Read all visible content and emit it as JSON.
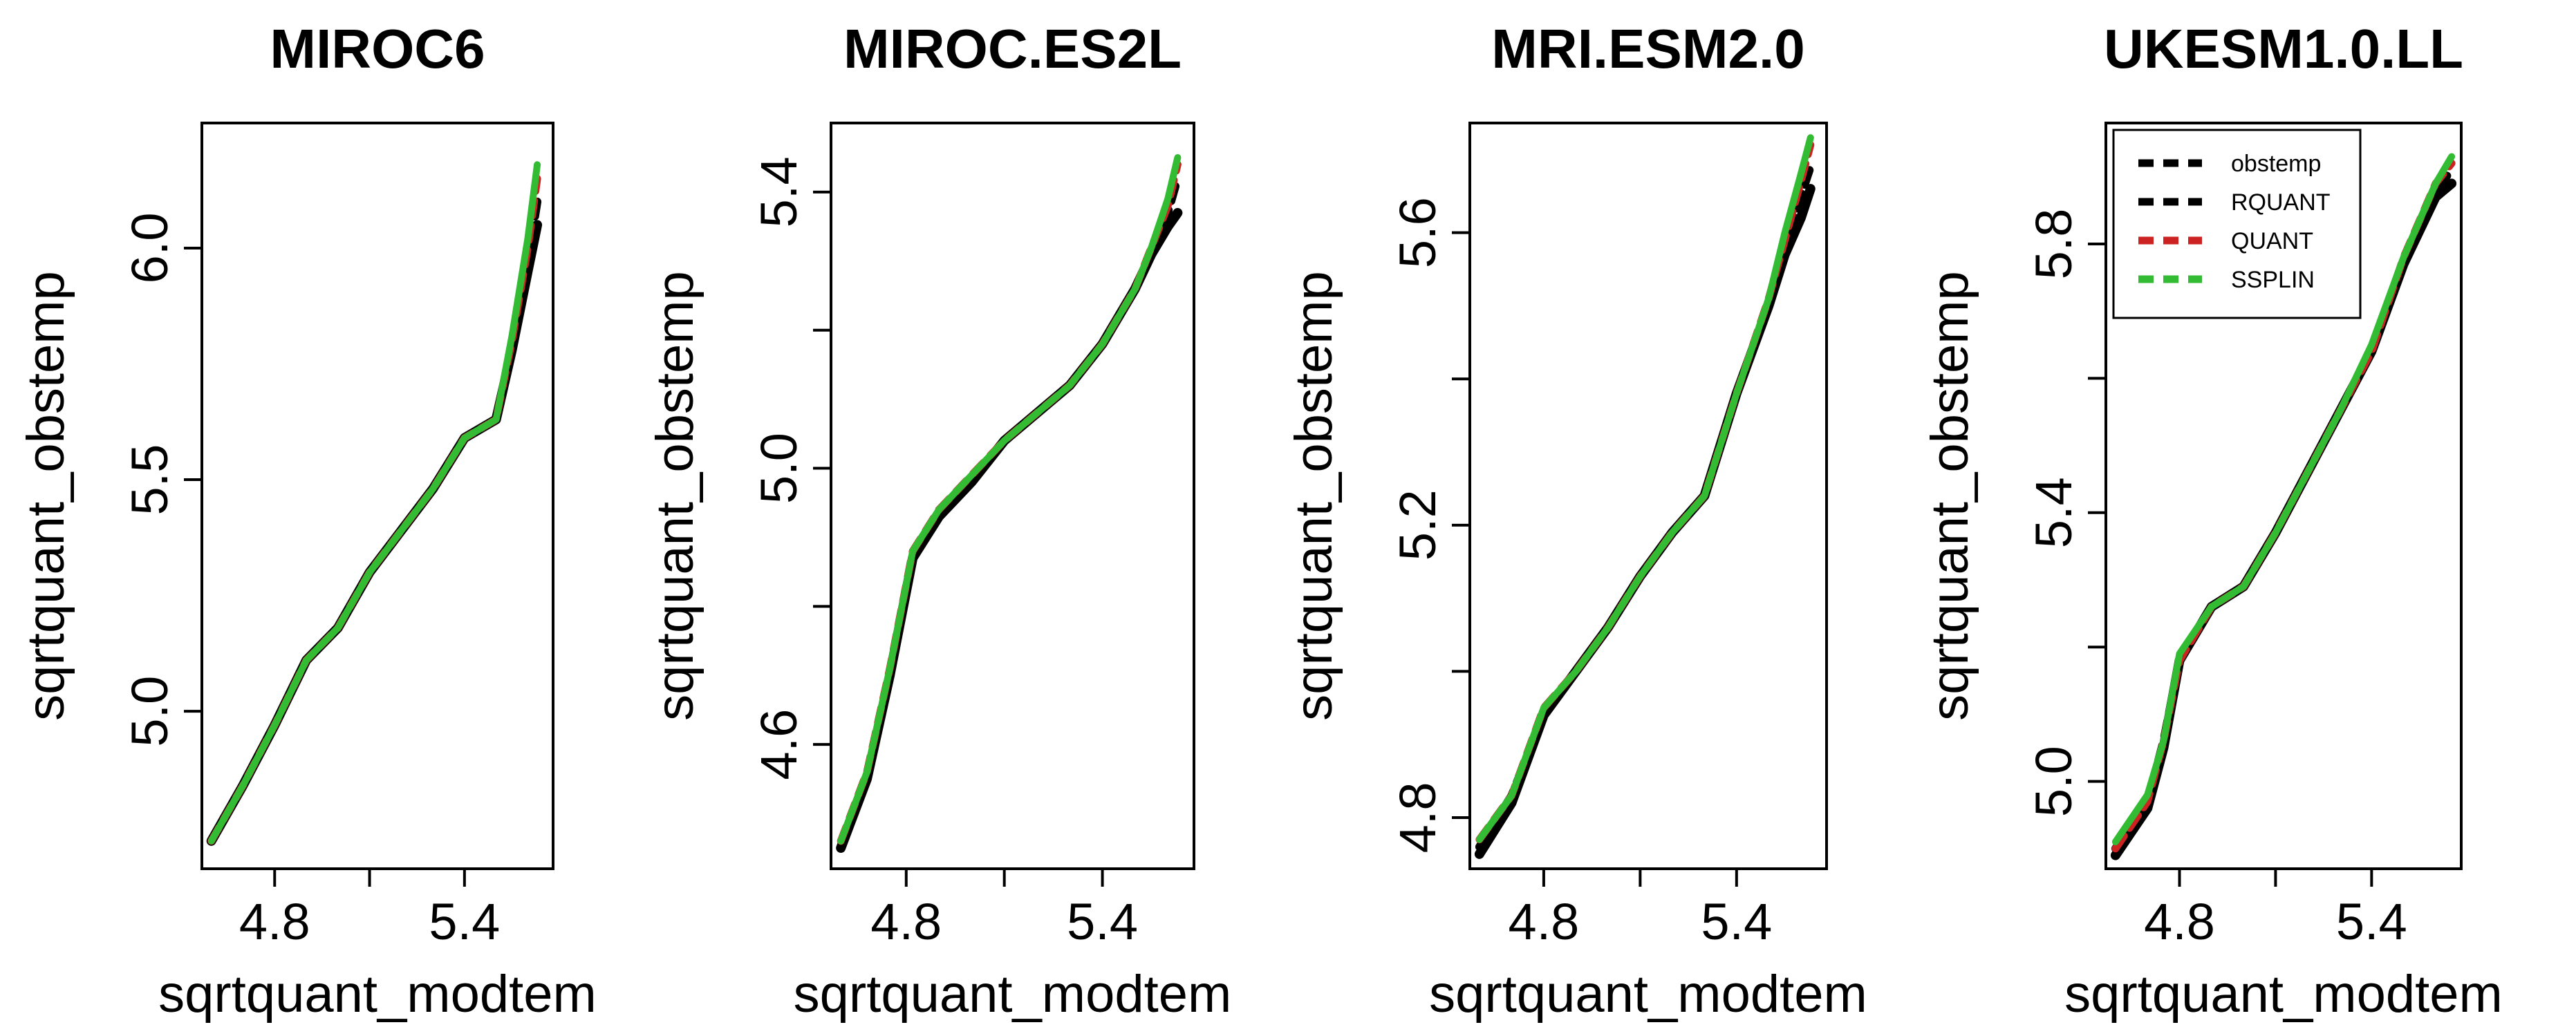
{
  "figure": {
    "background": "#ffffff",
    "line_colors": {
      "obstemp": "#000000",
      "RQUANT": "#000000",
      "QUANT": "#cc2222",
      "SSPLIN": "#33bb33"
    }
  },
  "chart_data": [
    {
      "type": "line",
      "title": "MIROC6",
      "xlabel": "sqrtquant_modtem",
      "ylabel": "sqrtquant_obstemp",
      "xlim": [
        4.57,
        5.68
      ],
      "ylim": [
        4.66,
        6.27
      ],
      "xticks": [
        4.8,
        5.1,
        5.4
      ],
      "xtick_labels": [
        "4.8",
        "",
        "5.4"
      ],
      "yticks": [
        5.0,
        5.5,
        6.0
      ],
      "ytick_labels": [
        "5.0",
        "5.5",
        "6.0"
      ],
      "grid": false,
      "legend": null,
      "x": [
        4.6,
        4.7,
        4.8,
        4.9,
        5.0,
        5.1,
        5.2,
        5.3,
        5.4,
        5.5,
        5.55,
        5.6,
        5.63
      ],
      "series": [
        {
          "name": "obstemp",
          "values": [
            4.72,
            4.84,
            4.97,
            5.11,
            5.18,
            5.3,
            5.39,
            5.48,
            5.59,
            5.63,
            5.78,
            5.95,
            6.05
          ]
        },
        {
          "name": "RQUANT",
          "values": [
            4.72,
            4.84,
            4.97,
            5.11,
            5.18,
            5.3,
            5.39,
            5.48,
            5.59,
            5.63,
            5.78,
            5.97,
            6.1
          ]
        },
        {
          "name": "QUANT",
          "values": [
            4.72,
            4.84,
            4.97,
            5.11,
            5.18,
            5.3,
            5.39,
            5.48,
            5.59,
            5.63,
            5.8,
            6.0,
            6.15
          ]
        },
        {
          "name": "SSPLIN",
          "values": [
            4.72,
            4.84,
            4.97,
            5.11,
            5.18,
            5.3,
            5.39,
            5.48,
            5.59,
            5.63,
            5.81,
            6.02,
            6.18
          ]
        }
      ]
    },
    {
      "type": "line",
      "title": "MIROC.ES2L",
      "xlabel": "sqrtquant_modtem",
      "ylabel": "sqrtquant_obstemp",
      "xlim": [
        4.57,
        5.68
      ],
      "ylim": [
        4.42,
        5.5
      ],
      "xticks": [
        4.8,
        5.1,
        5.4
      ],
      "xtick_labels": [
        "4.8",
        "",
        "5.4"
      ],
      "yticks": [
        4.6,
        4.8,
        5.0,
        5.2,
        5.4
      ],
      "ytick_labels": [
        "4.6",
        "",
        "5.0",
        "",
        "5.4"
      ],
      "grid": false,
      "legend": null,
      "x": [
        4.6,
        4.68,
        4.75,
        4.82,
        4.9,
        5.0,
        5.1,
        5.2,
        5.3,
        5.4,
        5.5,
        5.55,
        5.6,
        5.63
      ],
      "series": [
        {
          "name": "obstemp",
          "values": [
            4.45,
            4.55,
            4.7,
            4.87,
            4.93,
            4.98,
            5.04,
            5.08,
            5.12,
            5.18,
            5.26,
            5.31,
            5.35,
            5.37
          ]
        },
        {
          "name": "RQUANT",
          "values": [
            4.45,
            4.55,
            4.7,
            4.87,
            4.93,
            4.98,
            5.04,
            5.08,
            5.12,
            5.18,
            5.26,
            5.31,
            5.37,
            5.42
          ]
        },
        {
          "name": "QUANT",
          "values": [
            4.46,
            4.56,
            4.71,
            4.88,
            4.94,
            4.99,
            5.04,
            5.08,
            5.12,
            5.18,
            5.26,
            5.32,
            5.38,
            5.44
          ]
        },
        {
          "name": "SSPLIN",
          "values": [
            4.46,
            4.56,
            4.71,
            4.88,
            4.94,
            4.99,
            5.04,
            5.08,
            5.12,
            5.18,
            5.26,
            5.32,
            5.39,
            5.45
          ]
        }
      ]
    },
    {
      "type": "line",
      "title": "MRI.ESM2.0",
      "xlabel": "sqrtquant_modtem",
      "ylabel": "sqrtquant_obstemp",
      "xlim": [
        4.57,
        5.68
      ],
      "ylim": [
        4.73,
        5.75
      ],
      "xticks": [
        4.8,
        5.1,
        5.4
      ],
      "xtick_labels": [
        "4.8",
        "",
        "5.4"
      ],
      "yticks": [
        4.8,
        5.0,
        5.2,
        5.4,
        5.6
      ],
      "ytick_labels": [
        "4.8",
        "",
        "5.2",
        "",
        "5.6"
      ],
      "grid": false,
      "legend": null,
      "x": [
        4.6,
        4.7,
        4.8,
        4.9,
        5.0,
        5.1,
        5.2,
        5.3,
        5.4,
        5.5,
        5.55,
        5.6,
        5.63
      ],
      "series": [
        {
          "name": "obstemp",
          "values": [
            4.75,
            4.82,
            4.94,
            5.0,
            5.06,
            5.13,
            5.19,
            5.24,
            5.38,
            5.5,
            5.57,
            5.62,
            5.66
          ]
        },
        {
          "name": "RQUANT",
          "values": [
            4.76,
            4.83,
            4.94,
            5.0,
            5.06,
            5.13,
            5.19,
            5.24,
            5.38,
            5.5,
            5.58,
            5.65,
            5.69
          ]
        },
        {
          "name": "QUANT",
          "values": [
            4.77,
            4.83,
            4.95,
            5.0,
            5.06,
            5.13,
            5.19,
            5.24,
            5.38,
            5.51,
            5.59,
            5.67,
            5.72
          ]
        },
        {
          "name": "SSPLIN",
          "values": [
            4.77,
            4.83,
            4.95,
            5.0,
            5.06,
            5.13,
            5.19,
            5.24,
            5.38,
            5.51,
            5.6,
            5.68,
            5.73
          ]
        }
      ]
    },
    {
      "type": "line",
      "title": "UKESM1.0.LL",
      "xlabel": "sqrtquant_modtem",
      "ylabel": "sqrtquant_obstemp",
      "xlim": [
        4.57,
        5.68
      ],
      "ylim": [
        4.87,
        5.98
      ],
      "xticks": [
        4.8,
        5.1,
        5.4
      ],
      "xtick_labels": [
        "4.8",
        "",
        "5.4"
      ],
      "yticks": [
        5.0,
        5.2,
        5.4,
        5.6,
        5.8
      ],
      "ytick_labels": [
        "5.0",
        "",
        "5.4",
        "",
        "5.8"
      ],
      "grid": false,
      "legend": {
        "position": "top-right",
        "entries": [
          {
            "label": "obstemp",
            "color": "#000000"
          },
          {
            "label": "RQUANT",
            "color": "#000000"
          },
          {
            "label": "QUANT",
            "color": "#cc2222"
          },
          {
            "label": "SSPLIN",
            "color": "#33bb33"
          }
        ]
      },
      "x": [
        4.6,
        4.7,
        4.75,
        4.8,
        4.9,
        5.0,
        5.1,
        5.2,
        5.3,
        5.4,
        5.5,
        5.6,
        5.65
      ],
      "series": [
        {
          "name": "obstemp",
          "values": [
            4.89,
            4.96,
            5.05,
            5.18,
            5.26,
            5.29,
            5.37,
            5.46,
            5.55,
            5.64,
            5.77,
            5.87,
            5.89
          ]
        },
        {
          "name": "RQUANT",
          "values": [
            4.9,
            4.97,
            5.06,
            5.18,
            5.26,
            5.29,
            5.37,
            5.46,
            5.55,
            5.64,
            5.77,
            5.88,
            5.91
          ]
        },
        {
          "name": "QUANT",
          "values": [
            4.9,
            4.97,
            5.06,
            5.18,
            5.26,
            5.29,
            5.37,
            5.46,
            5.55,
            5.64,
            5.78,
            5.89,
            5.92
          ]
        },
        {
          "name": "SSPLIN",
          "values": [
            4.91,
            4.98,
            5.06,
            5.19,
            5.26,
            5.29,
            5.37,
            5.46,
            5.55,
            5.65,
            5.78,
            5.89,
            5.93
          ]
        }
      ]
    }
  ]
}
